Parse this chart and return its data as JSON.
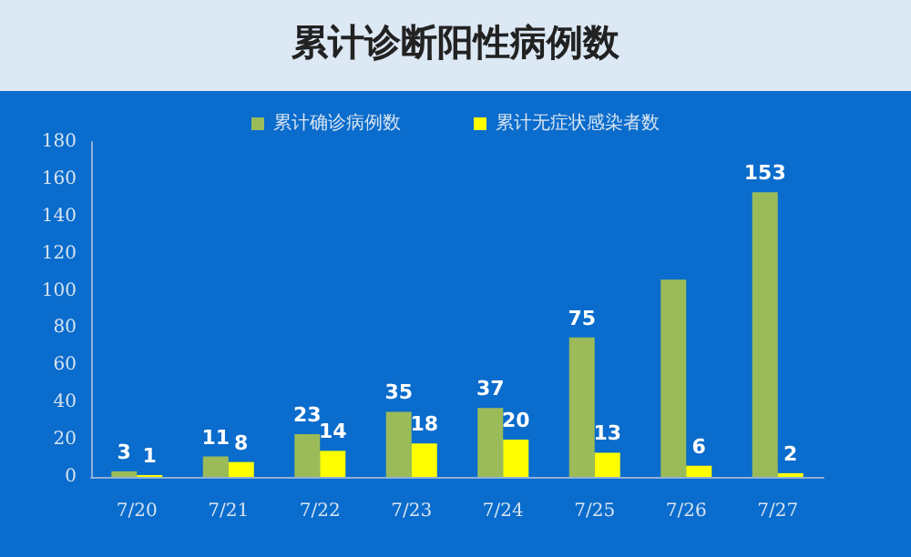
{
  "chart_data": {
    "type": "bar",
    "title": "累计诊断阳性病例数",
    "categories": [
      "7/20",
      "7/21",
      "7/22",
      "7/23",
      "7/24",
      "7/25",
      "7/26",
      "7/27"
    ],
    "series": [
      {
        "name": "累计确诊病例数",
        "color": "#9bbb59",
        "values": [
          3,
          11,
          23,
          35,
          37,
          75,
          106,
          153
        ],
        "value_labels": [
          "3",
          "11",
          "23",
          "35",
          "37",
          "75",
          null,
          "153"
        ]
      },
      {
        "name": "累计无症状感染者数",
        "color": "#ffff00",
        "values": [
          1,
          8,
          14,
          18,
          20,
          13,
          6,
          2
        ],
        "value_labels": [
          "1",
          "8",
          "14",
          "18",
          "20",
          "13",
          "6",
          "2"
        ]
      }
    ],
    "ylim": [
      0,
      180
    ],
    "yticks": [
      0,
      20,
      40,
      60,
      80,
      100,
      120,
      140,
      160,
      180
    ],
    "grid": false,
    "legend": "top"
  }
}
